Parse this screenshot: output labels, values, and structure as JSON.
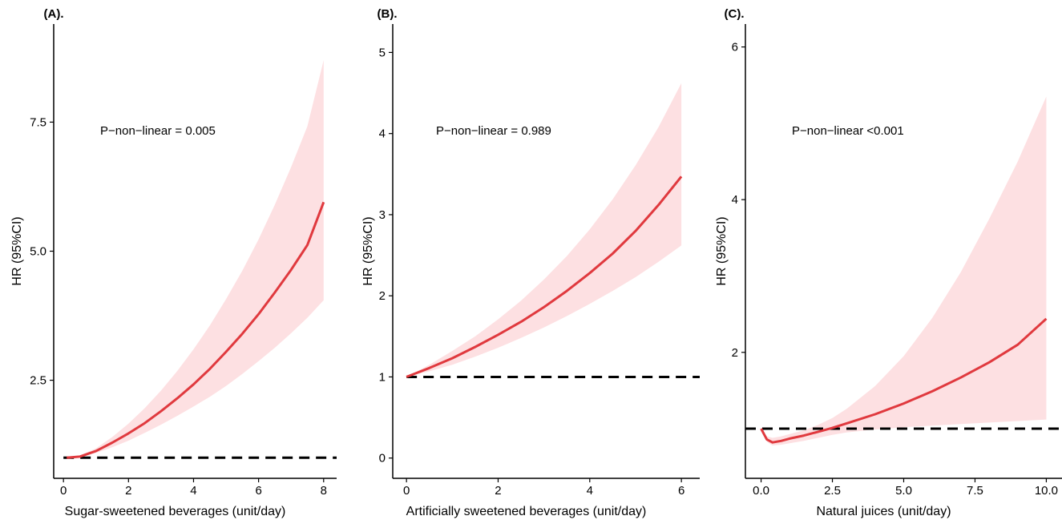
{
  "colors": {
    "curve": "#e0393e",
    "ci_fill": "#fde0e2",
    "reference": "#000000"
  },
  "chart_data": [
    {
      "type": "line",
      "panel_label": "(A).",
      "annotation": "P−non−linear = 0.005",
      "xlabel": "Sugar-sweetened beverages (unit/day)",
      "ylabel": "HR (95%CI)",
      "xlim": [
        -0.3,
        8.4
      ],
      "ylim": [
        0.6,
        9.4
      ],
      "xticks": [
        0,
        2,
        4,
        6,
        8
      ],
      "xtick_labels": [
        "0",
        "2",
        "4",
        "6",
        "8"
      ],
      "yticks": [
        2.5,
        5.0,
        7.5
      ],
      "ytick_labels": [
        "2.5",
        "5.0",
        "7.5"
      ],
      "reference_y": 1,
      "reference_x_start": 0,
      "series": [
        {
          "name": "HR",
          "x": [
            0.1,
            0.5,
            1,
            1.5,
            2,
            2.5,
            3,
            3.5,
            4,
            4.5,
            5,
            5.5,
            6,
            6.5,
            7,
            7.5,
            8
          ],
          "y": [
            1.0,
            1.02,
            1.13,
            1.29,
            1.47,
            1.67,
            1.9,
            2.15,
            2.42,
            2.72,
            3.05,
            3.4,
            3.78,
            4.2,
            4.64,
            5.12,
            5.95
          ],
          "lower": [
            1.0,
            1.01,
            1.09,
            1.2,
            1.33,
            1.48,
            1.64,
            1.81,
            1.99,
            2.18,
            2.39,
            2.62,
            2.87,
            3.13,
            3.41,
            3.71,
            4.05
          ],
          "upper": [
            1.0,
            1.04,
            1.18,
            1.4,
            1.66,
            1.96,
            2.3,
            2.68,
            3.1,
            3.56,
            4.07,
            4.62,
            5.23,
            5.9,
            6.63,
            7.42,
            8.7
          ]
        }
      ]
    },
    {
      "type": "line",
      "panel_label": "(B).",
      "annotation": "P−non−linear = 0.989",
      "xlabel": "Artificially sweetened beverages (unit/day)",
      "ylabel": "HR (95%CI)",
      "xlim": [
        -0.3,
        6.4
      ],
      "ylim": [
        -0.25,
        5.35
      ],
      "xticks": [
        0,
        2,
        4,
        6
      ],
      "xtick_labels": [
        "0",
        "2",
        "4",
        "6"
      ],
      "yticks": [
        0,
        1,
        2,
        3,
        4,
        5
      ],
      "ytick_labels": [
        "0",
        "1",
        "2",
        "3",
        "4",
        "5"
      ],
      "reference_y": 1,
      "reference_x_start": 0,
      "series": [
        {
          "name": "HR",
          "x": [
            0,
            0.5,
            1,
            1.5,
            2,
            2.5,
            3,
            3.5,
            4,
            4.5,
            5,
            5.5,
            6
          ],
          "y": [
            1.0,
            1.11,
            1.23,
            1.37,
            1.52,
            1.68,
            1.86,
            2.06,
            2.28,
            2.52,
            2.8,
            3.12,
            3.47
          ],
          "lower": [
            1.0,
            1.07,
            1.15,
            1.25,
            1.36,
            1.48,
            1.61,
            1.75,
            1.9,
            2.06,
            2.23,
            2.42,
            2.62
          ],
          "upper": [
            1.0,
            1.15,
            1.32,
            1.5,
            1.71,
            1.94,
            2.2,
            2.49,
            2.82,
            3.19,
            3.61,
            4.08,
            4.62
          ]
        }
      ]
    },
    {
      "type": "line",
      "panel_label": "(C).",
      "annotation": "P−non−linear <0.001",
      "xlabel": "Natural juices (unit/day)",
      "ylabel": "HR (95%CI)",
      "xlim": [
        -0.55,
        10.55
      ],
      "ylim": [
        0.35,
        6.3
      ],
      "xticks": [
        0,
        2.5,
        5,
        7.5,
        10
      ],
      "xtick_labels": [
        "0.0",
        "2.5",
        "5.0",
        "7.5",
        "10.0"
      ],
      "yticks": [
        2,
        4,
        6
      ],
      "ytick_labels": [
        "2",
        "4",
        "6"
      ],
      "reference_y": 1,
      "reference_x_start": -0.55,
      "series": [
        {
          "name": "HR",
          "x": [
            0,
            0.2,
            0.4,
            0.7,
            1,
            1.5,
            2,
            2.5,
            3,
            4,
            5,
            6,
            7,
            8,
            9,
            10
          ],
          "y": [
            1.0,
            0.86,
            0.82,
            0.84,
            0.87,
            0.91,
            0.96,
            1.01,
            1.07,
            1.19,
            1.33,
            1.49,
            1.67,
            1.87,
            2.1,
            2.44
          ],
          "lower": [
            1.0,
            0.83,
            0.78,
            0.79,
            0.81,
            0.84,
            0.88,
            0.92,
            0.95,
            0.99,
            1.02,
            1.04,
            1.06,
            1.08,
            1.1,
            1.12
          ],
          "upper": [
            1.0,
            0.9,
            0.88,
            0.9,
            0.93,
            0.98,
            1.05,
            1.14,
            1.26,
            1.56,
            1.95,
            2.45,
            3.05,
            3.75,
            4.5,
            5.35
          ]
        }
      ]
    }
  ]
}
